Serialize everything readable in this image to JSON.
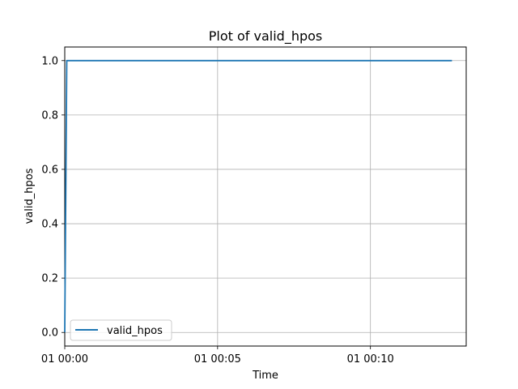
{
  "chart_data": {
    "type": "line",
    "title": "Plot of valid_hpos",
    "xlabel": "Time",
    "ylabel": "valid_hpos",
    "x_ticks": [
      "01 00:00",
      "01 00:05",
      "01 00:10"
    ],
    "x_tick_values": [
      0,
      300,
      600
    ],
    "xlim": [
      0,
      788
    ],
    "y_ticks": [
      "0.0",
      "0.2",
      "0.4",
      "0.6",
      "0.8",
      "1.0"
    ],
    "y_tick_values": [
      0.0,
      0.2,
      0.4,
      0.6,
      0.8,
      1.0
    ],
    "ylim": [
      -0.05,
      1.05
    ],
    "grid": true,
    "legend_position": "lower-left",
    "series": [
      {
        "name": "valid_hpos",
        "color": "#1f77b4",
        "x": [
          0,
          4,
          760
        ],
        "y": [
          0.0,
          1.0,
          1.0
        ]
      }
    ]
  }
}
